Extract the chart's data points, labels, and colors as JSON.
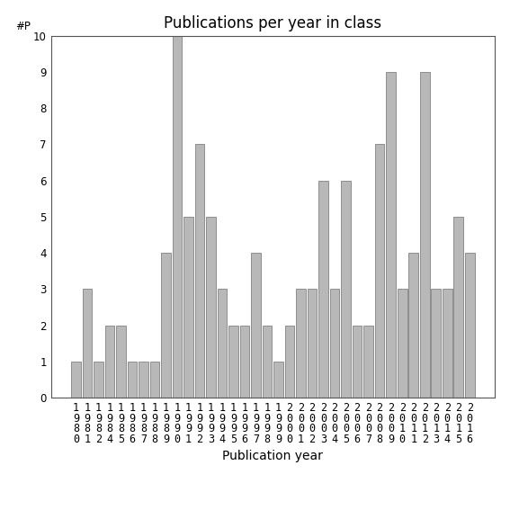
{
  "years": [
    1980,
    1981,
    1982,
    1984,
    1985,
    1986,
    1987,
    1988,
    1989,
    1990,
    1991,
    1992,
    1993,
    1994,
    1995,
    1996,
    1997,
    1998,
    1999,
    2000,
    2001,
    2002,
    2003,
    2004,
    2005,
    2006,
    2007,
    2008,
    2009,
    2010,
    2011,
    2012,
    2013,
    2014,
    2015,
    2016
  ],
  "values": [
    1,
    3,
    1,
    2,
    2,
    1,
    1,
    1,
    4,
    10,
    5,
    7,
    5,
    3,
    2,
    2,
    4,
    2,
    1,
    2,
    3,
    3,
    6,
    3,
    6,
    2,
    2,
    7,
    9,
    3,
    4,
    9,
    3,
    3,
    5,
    4
  ],
  "title": "Publications per year in class",
  "xlabel": "Publication year",
  "bar_color": "#b8b8b8",
  "bar_edge_color": "#707070",
  "ylim": [
    0,
    10
  ],
  "yticks": [
    0,
    1,
    2,
    3,
    4,
    5,
    6,
    7,
    8,
    9,
    10
  ],
  "background_color": "#ffffff",
  "title_fontsize": 12,
  "label_fontsize": 10,
  "tick_fontsize": 8.5
}
